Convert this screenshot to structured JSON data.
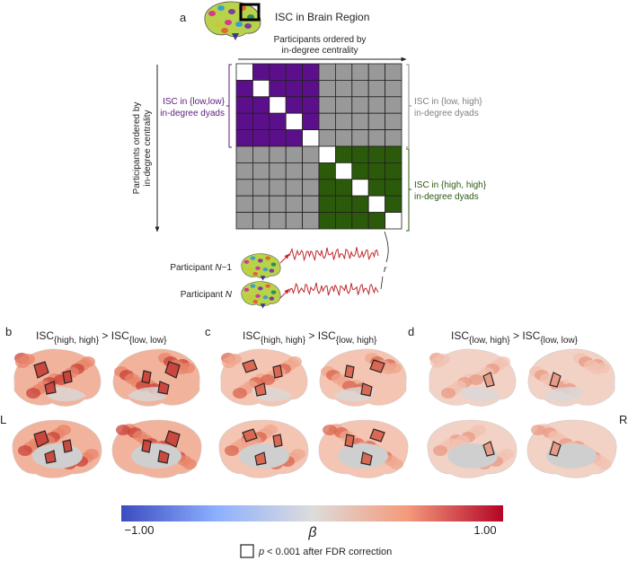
{
  "panel_a": {
    "label": "a",
    "title": "ISC in Brain Region",
    "top_axis": [
      "Participants ordered by",
      "in-degree centrality"
    ],
    "side_axis": [
      "Participants ordered by",
      "in-degree centrality"
    ],
    "groups": [
      {
        "lines": [
          "ISC in {low,low}",
          "in-degree dyads"
        ]
      },
      {
        "lines": [
          "ISC in {low, high}",
          "in-degree dyads"
        ]
      },
      {
        "lines": [
          "ISC in {high, high}",
          "in-degree dyads"
        ]
      }
    ],
    "participants": [
      {
        "prefix": "Participant ",
        "var": "N",
        "suffix": "−1"
      },
      {
        "prefix": "Participant ",
        "var": "N"
      }
    ],
    "r": "r"
  },
  "panels": [
    {
      "label": "b",
      "title": [
        "ISC",
        "{high, high}",
        " > ",
        "ISC",
        "{low, low}"
      ]
    },
    {
      "label": "c",
      "title": [
        "ISC",
        "{high, high}",
        " > ",
        "ISC",
        "{low, high}"
      ]
    },
    {
      "label": "d",
      "title": [
        "ISC",
        "{low, high}",
        " > ",
        "ISC",
        "{low, low}"
      ]
    }
  ],
  "hemispheres": {
    "left": "L",
    "right": "R"
  },
  "colorbar": {
    "min_label": "−1.00",
    "label": "β",
    "max_label": "1.00"
  },
  "legend": {
    "var": "p",
    "text": " < 0.001 after FDR correction"
  }
}
